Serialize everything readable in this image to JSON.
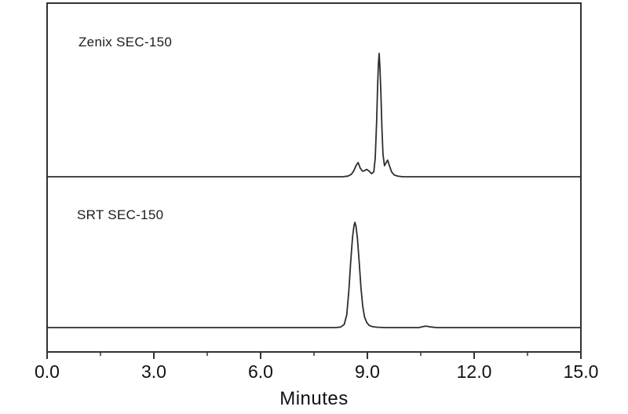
{
  "chart_data": {
    "type": "line",
    "title": "",
    "subtitle": "",
    "xlabel": "Minutes",
    "ylabel": "",
    "xlim": [
      0.0,
      15.0
    ],
    "x_major_ticks": [
      0.0,
      3.0,
      6.0,
      9.0,
      12.0,
      15.0
    ],
    "x_major_tick_labels": [
      "0.0",
      "3.0",
      "6.0",
      "9.0",
      "12.0",
      "15.0"
    ],
    "x_minor_ticks": [
      1.5,
      4.5,
      7.5,
      10.5,
      13.5
    ],
    "grid": false,
    "legend_position": "none",
    "axis_color": "#333333",
    "line_color": "#2e2e2e",
    "background_color": "#ffffff",
    "panels": [
      {
        "label": "Zenix SEC-150",
        "main_peak_retention_min": 9.33,
        "peak_retention_minutes": [
          8.74,
          8.98,
          9.33,
          9.57
        ],
        "points": [
          [
            0.0,
            0.0
          ],
          [
            8.0,
            0.0
          ],
          [
            8.3,
            0.0
          ],
          [
            8.45,
            0.005
          ],
          [
            8.55,
            0.02
          ],
          [
            8.62,
            0.05
          ],
          [
            8.68,
            0.09
          ],
          [
            8.74,
            0.115
          ],
          [
            8.8,
            0.07
          ],
          [
            8.86,
            0.045
          ],
          [
            8.92,
            0.05
          ],
          [
            8.98,
            0.06
          ],
          [
            9.05,
            0.045
          ],
          [
            9.12,
            0.025
          ],
          [
            9.18,
            0.04
          ],
          [
            9.22,
            0.15
          ],
          [
            9.26,
            0.45
          ],
          [
            9.29,
            0.75
          ],
          [
            9.31,
            0.92
          ],
          [
            9.33,
            1.0
          ],
          [
            9.35,
            0.9
          ],
          [
            9.38,
            0.68
          ],
          [
            9.41,
            0.38
          ],
          [
            9.44,
            0.18
          ],
          [
            9.48,
            0.09
          ],
          [
            9.52,
            0.11
          ],
          [
            9.57,
            0.135
          ],
          [
            9.62,
            0.09
          ],
          [
            9.68,
            0.04
          ],
          [
            9.75,
            0.015
          ],
          [
            9.85,
            0.005
          ],
          [
            10.0,
            0.0
          ],
          [
            12.0,
            0.0
          ],
          [
            15.0,
            0.0
          ]
        ]
      },
      {
        "label": "SRT SEC-150",
        "main_peak_retention_min": 8.65,
        "peak_retention_minutes": [
          8.65
        ],
        "points": [
          [
            0.0,
            0.0
          ],
          [
            7.8,
            0.0
          ],
          [
            8.1,
            0.0
          ],
          [
            8.25,
            0.005
          ],
          [
            8.35,
            0.03
          ],
          [
            8.42,
            0.12
          ],
          [
            8.48,
            0.35
          ],
          [
            8.53,
            0.62
          ],
          [
            8.58,
            0.85
          ],
          [
            8.62,
            0.96
          ],
          [
            8.65,
            1.0
          ],
          [
            8.68,
            0.96
          ],
          [
            8.72,
            0.85
          ],
          [
            8.77,
            0.62
          ],
          [
            8.82,
            0.38
          ],
          [
            8.87,
            0.2
          ],
          [
            8.92,
            0.1
          ],
          [
            8.98,
            0.05
          ],
          [
            9.05,
            0.02
          ],
          [
            9.15,
            0.008
          ],
          [
            9.3,
            0.003
          ],
          [
            9.5,
            0.0
          ],
          [
            10.45,
            0.0
          ],
          [
            10.55,
            0.008
          ],
          [
            10.65,
            0.014
          ],
          [
            10.78,
            0.006
          ],
          [
            10.95,
            0.0
          ],
          [
            13.0,
            0.0
          ],
          [
            15.0,
            0.0
          ]
        ]
      }
    ]
  }
}
